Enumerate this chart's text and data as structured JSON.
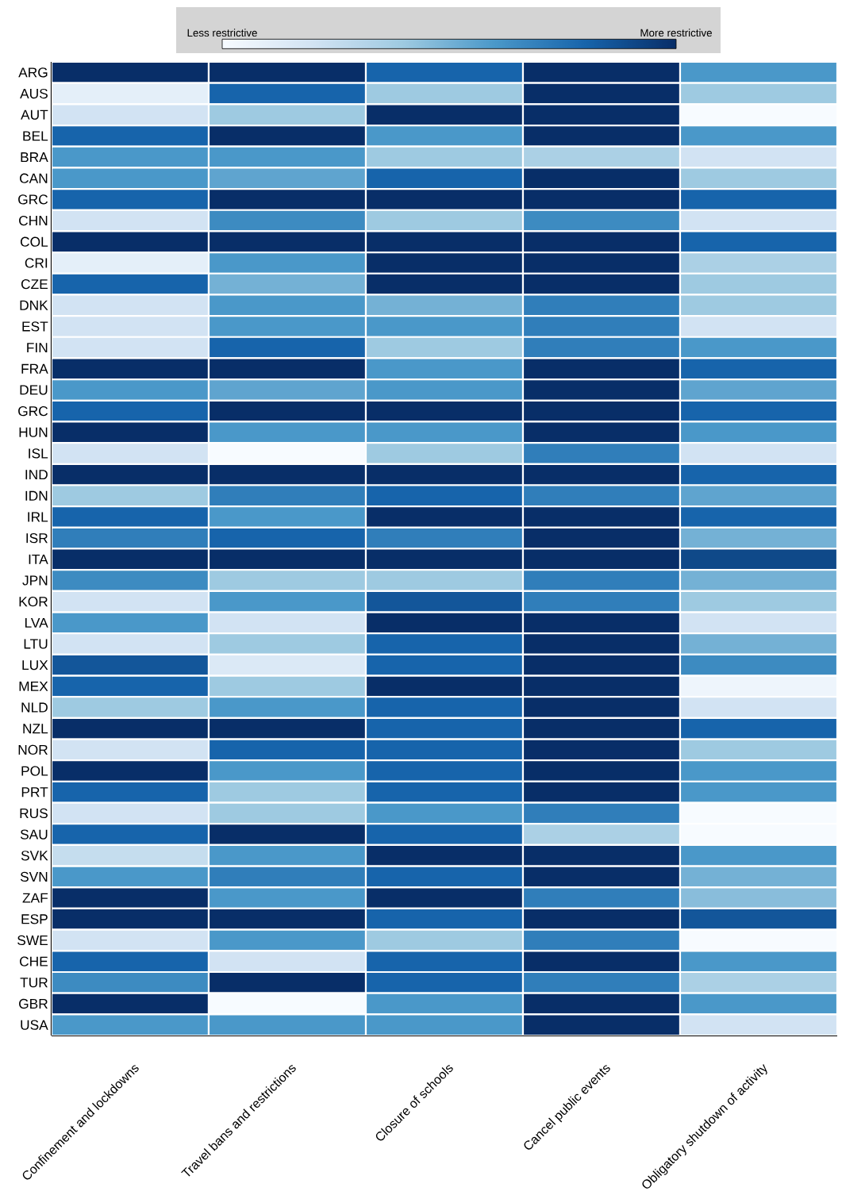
{
  "chart_data": {
    "type": "heatmap",
    "categories": [
      "Confinement and lockdowns",
      "Travel bans and restrictions",
      "Closure of schools",
      "Cancel public events",
      "Obligatory shutdown of activity"
    ],
    "y_categories": [
      "ARG",
      "AUS",
      "AUT",
      "BEL",
      "BRA",
      "CAN",
      "GRC",
      "CHN",
      "COL",
      "CRI",
      "CZE",
      "DNK",
      "EST",
      "FIN",
      "FRA",
      "DEU",
      "GRC",
      "HUN",
      "ISL",
      "IND",
      "IDN",
      "IRL",
      "ISR",
      "ITA",
      "JPN",
      "KOR",
      "LVA",
      "LTU",
      "LUX",
      "MEX",
      "NLD",
      "NZL",
      "NOR",
      "POL",
      "PRT",
      "RUS",
      "SAU",
      "SVK",
      "SVN",
      "ZAF",
      "ESP",
      "SWE",
      "CHE",
      "TUR",
      "GBR",
      "USA"
    ],
    "cells": [
      [
        1,
        1,
        0.8,
        1,
        0.6
      ],
      [
        0.1,
        0.8,
        0.4,
        1,
        0.4
      ],
      [
        0.2,
        0.4,
        1,
        1,
        0
      ],
      [
        0.8,
        1,
        0.6,
        1,
        0.6
      ],
      [
        0.6,
        0.6,
        0.4,
        0.35,
        0.2
      ],
      [
        0.6,
        0.55,
        0.8,
        1,
        0.4
      ],
      [
        0.8,
        1,
        1,
        1,
        0.8
      ],
      [
        0.2,
        0.65,
        0.4,
        0.65,
        0.2
      ],
      [
        1,
        1,
        1,
        1,
        0.8
      ],
      [
        0.1,
        0.6,
        1,
        1,
        0.35
      ],
      [
        0.8,
        0.5,
        1,
        1,
        0.4
      ],
      [
        0.2,
        0.6,
        0.5,
        0.7,
        0.4
      ],
      [
        0.2,
        0.6,
        0.6,
        0.7,
        0.2
      ],
      [
        0.2,
        0.8,
        0.4,
        0.7,
        0.6
      ],
      [
        1,
        1,
        0.6,
        1,
        0.8
      ],
      [
        0.6,
        0.55,
        0.6,
        1,
        0.55
      ],
      [
        0.8,
        1,
        1,
        1,
        0.8
      ],
      [
        1,
        0.6,
        0.6,
        1,
        0.6
      ],
      [
        0.2,
        0,
        0.4,
        0.7,
        0.2
      ],
      [
        1,
        1,
        1,
        1,
        0.8
      ],
      [
        0.4,
        0.7,
        0.8,
        0.7,
        0.55
      ],
      [
        0.8,
        0.6,
        1,
        1,
        0.8
      ],
      [
        0.7,
        0.8,
        0.7,
        1,
        0.5
      ],
      [
        1,
        1,
        1,
        1,
        0.9
      ],
      [
        0.65,
        0.4,
        0.4,
        0.7,
        0.5
      ],
      [
        0.2,
        0.6,
        0.85,
        0.7,
        0.4
      ],
      [
        0.6,
        0.2,
        1,
        1,
        0.2
      ],
      [
        0.2,
        0.4,
        0.8,
        1,
        0.5
      ],
      [
        0.85,
        0.15,
        0.8,
        1,
        0.65
      ],
      [
        0.8,
        0.4,
        1,
        1,
        0.05
      ],
      [
        0.4,
        0.6,
        0.8,
        1,
        0.2
      ],
      [
        1,
        1,
        0.8,
        1,
        0.8
      ],
      [
        0.2,
        0.8,
        0.8,
        1,
        0.4
      ],
      [
        1,
        0.6,
        0.8,
        1,
        0.6
      ],
      [
        0.8,
        0.4,
        0.8,
        1,
        0.6
      ],
      [
        0.2,
        0.4,
        0.6,
        0.7,
        0
      ],
      [
        0.8,
        1,
        0.8,
        0.35,
        0
      ],
      [
        0.25,
        0.6,
        1,
        1,
        0.6
      ],
      [
        0.6,
        0.7,
        0.8,
        1,
        0.5
      ],
      [
        1,
        0.6,
        1,
        0.7,
        0.45
      ],
      [
        1,
        1,
        0.8,
        1,
        0.85
      ],
      [
        0.2,
        0.6,
        0.4,
        0.7,
        0
      ],
      [
        0.8,
        0.2,
        0.8,
        1,
        0.6
      ],
      [
        0.65,
        1,
        0.8,
        0.7,
        0.35
      ],
      [
        1,
        0,
        0.6,
        1,
        0.6
      ],
      [
        0.6,
        0.6,
        0.6,
        1,
        0.2
      ]
    ],
    "clim": [
      0,
      1
    ],
    "cticks": [
      {
        "value": 0,
        "label": "Less restrictive"
      },
      {
        "value": 1,
        "label": "More restrictive"
      }
    ]
  }
}
